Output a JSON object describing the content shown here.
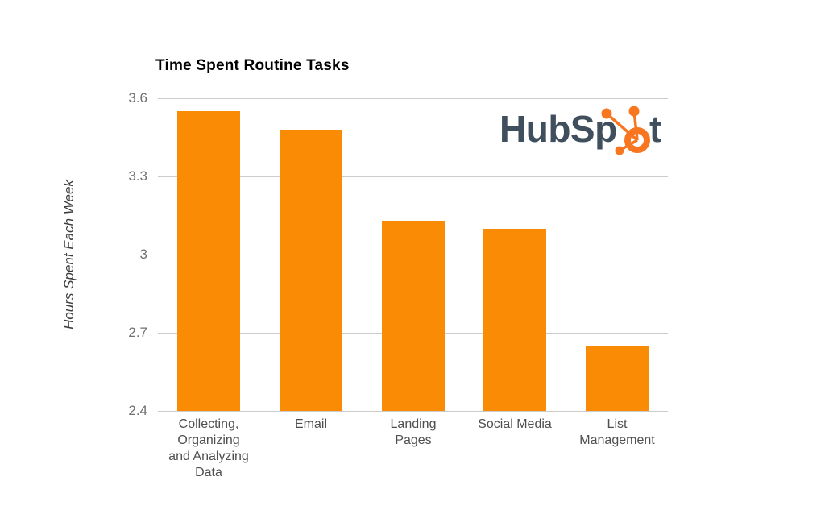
{
  "chart_data": {
    "type": "bar",
    "title": "Time Spent Routine Tasks",
    "xlabel": "",
    "ylabel": "Hours Spent Each Week",
    "categories": [
      "Collecting,\nOrganizing\nand Analyzing\nData",
      "Email",
      "Landing\nPages",
      "Social Media",
      "List\nManagement"
    ],
    "values": [
      3.55,
      3.48,
      3.13,
      3.1,
      2.65
    ],
    "ylim": [
      2.4,
      3.6
    ],
    "ytick_values": [
      3.6,
      3.3,
      3.0,
      2.7,
      2.4
    ],
    "ytick_labels": [
      "3.6",
      "3.3",
      "3",
      "2.7",
      "2.4"
    ],
    "grid": true,
    "legend": "none",
    "colors": {
      "bar": "#fa8b05",
      "gridline": "#cccccc",
      "title_text": "#000000",
      "tick_text": "#707070",
      "category_text": "#4f4f4f",
      "axis_title_text": "#3d3d3d"
    }
  },
  "logo": {
    "name": "HubSpot",
    "text_before": "HubSp",
    "text_after": "t",
    "icon": "hubspot-sprocket-icon",
    "wordmark_color": "#404f5d",
    "sprocket_color": "#f8761f"
  }
}
